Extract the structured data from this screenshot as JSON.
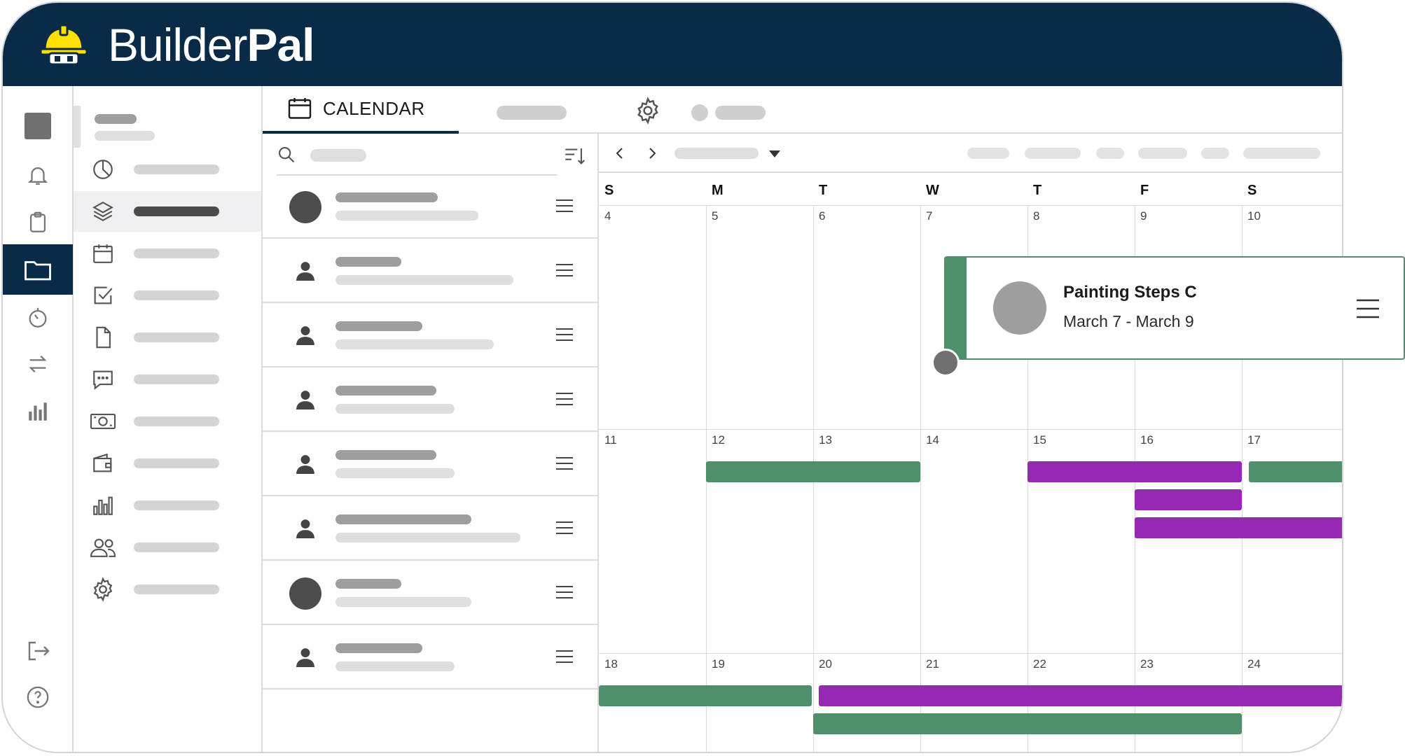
{
  "app": {
    "brand_light": "Builder",
    "brand_bold": "Pal"
  },
  "tabs": {
    "calendar_label": "CALENDAR"
  },
  "calendar": {
    "day_headers": [
      "S",
      "M",
      "T",
      "W",
      "T",
      "F",
      "S"
    ],
    "weeks": [
      [
        "4",
        "5",
        "6",
        "7",
        "8",
        "9",
        "10"
      ],
      [
        "11",
        "12",
        "13",
        "14",
        "15",
        "16",
        "17"
      ],
      [
        "18",
        "19",
        "20",
        "21",
        "22",
        "23",
        "24"
      ]
    ]
  },
  "popup": {
    "title": "Painting Steps C",
    "dates": "March 7 - March 9"
  },
  "colors": {
    "navy": "#0a2b47",
    "green": "#4f8f6c",
    "purple": "#9728b4",
    "helmet": "#ffe000"
  },
  "icons": {
    "rail": [
      "square-icon",
      "bell-icon",
      "clipboard-icon",
      "folder-icon",
      "timer-icon",
      "arrows-swap-icon",
      "bar-chart-icon",
      "logout-icon",
      "help-icon"
    ],
    "sidebar": [
      "pie-chart-icon",
      "layers-icon",
      "calendar-icon",
      "checkbox-icon",
      "document-icon",
      "chat-icon",
      "cash-icon",
      "wallet-icon",
      "bar-chart-icon",
      "users-icon",
      "gear-icon"
    ]
  }
}
